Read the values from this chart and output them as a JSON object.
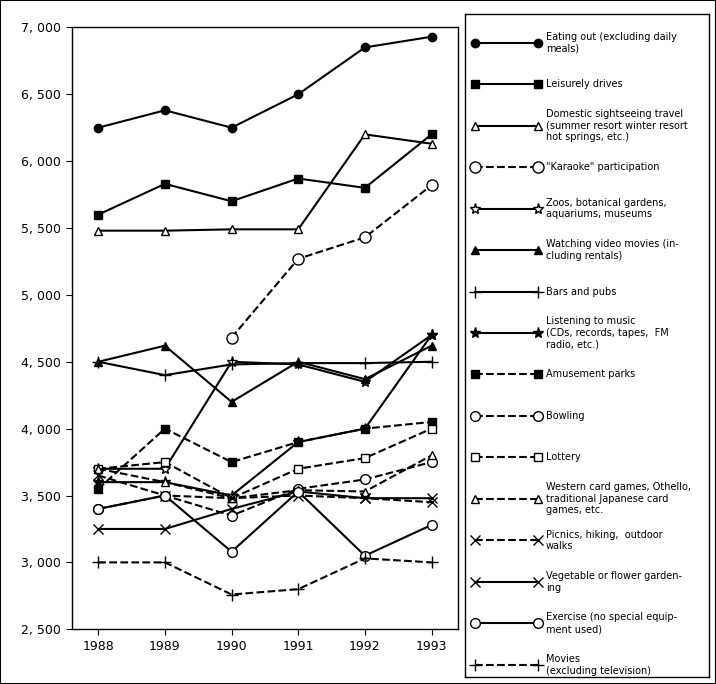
{
  "years": [
    1988,
    1989,
    1990,
    1991,
    1992,
    1993
  ],
  "series": [
    {
      "name": "Eating out (excluding daily\nmeals)",
      "values": [
        6250,
        6380,
        6250,
        6500,
        6850,
        6930
      ],
      "linestyle": "solid",
      "marker": "o",
      "markersize": 6,
      "markerfacecolor": "black",
      "linewidth": 1.5
    },
    {
      "name": "Leisurely drives",
      "values": [
        5600,
        5830,
        5700,
        5870,
        5800,
        6200
      ],
      "linestyle": "solid",
      "marker": "s",
      "markersize": 6,
      "markerfacecolor": "black",
      "linewidth": 1.5
    },
    {
      "name": "Domestic sightseeing travel\n(summer resort winter resort\nhot springs, etc.)",
      "values": [
        5480,
        5480,
        5490,
        5490,
        6200,
        6130
      ],
      "linestyle": "solid",
      "marker": "^",
      "markersize": 6,
      "markerfacecolor": "white",
      "linewidth": 1.5
    },
    {
      "name": "\"Karaoke\" participation",
      "values": [
        null,
        null,
        4680,
        5270,
        5430,
        5820
      ],
      "linestyle": "dashed",
      "marker": "o",
      "markersize": 8,
      "markerfacecolor": "white",
      "linewidth": 1.5
    },
    {
      "name": "Zoos, botanical gardens,\naquariums, museums",
      "values": [
        3700,
        3700,
        4500,
        4480,
        4350,
        4700
      ],
      "linestyle": "solid",
      "marker": "*",
      "markersize": 8,
      "markerfacecolor": "white",
      "linewidth": 1.5
    },
    {
      "name": "Watching video movies (in-\ncluding rentals)",
      "values": [
        4500,
        4620,
        4200,
        4500,
        4370,
        4620
      ],
      "linestyle": "solid",
      "marker": "^",
      "markersize": 6,
      "markerfacecolor": "black",
      "linewidth": 1.5
    },
    {
      "name": "Bars and pubs",
      "values": [
        4500,
        4400,
        4480,
        4490,
        4490,
        4500
      ],
      "linestyle": "solid",
      "marker": "+",
      "markersize": 8,
      "markerfacecolor": "black",
      "linewidth": 1.5
    },
    {
      "name": "Listening to music\n(CDs, records, tapes,  FM\nradio, etc.)",
      "values": [
        3600,
        3600,
        3500,
        3900,
        4000,
        4700
      ],
      "linestyle": "solid",
      "marker": "*",
      "markersize": 8,
      "markerfacecolor": "black",
      "linewidth": 1.5
    },
    {
      "name": "Amusement parks",
      "values": [
        3550,
        4000,
        3750,
        3900,
        4000,
        4050
      ],
      "linestyle": "dashed",
      "marker": "s",
      "markersize": 6,
      "markerfacecolor": "black",
      "linewidth": 1.5
    },
    {
      "name": "Bowling",
      "values": [
        3400,
        3500,
        3350,
        3550,
        3620,
        3750
      ],
      "linestyle": "dashed",
      "marker": "o",
      "markersize": 7,
      "markerfacecolor": "white",
      "linewidth": 1.5
    },
    {
      "name": "Lottery",
      "values": [
        3700,
        3750,
        3480,
        3700,
        3780,
        4000
      ],
      "linestyle": "dashed",
      "marker": "s",
      "markersize": 6,
      "markerfacecolor": "white",
      "linewidth": 1.5
    },
    {
      "name": "Western card games, Othello,\ntraditional Japanese card\ngames, etc.",
      "values": [
        3700,
        3600,
        3480,
        3540,
        3530,
        3800
      ],
      "linestyle": "dashed",
      "marker": "^",
      "markersize": 6,
      "markerfacecolor": "white",
      "linewidth": 1.5
    },
    {
      "name": "Picnics, hiking,  outdoor\nwalks",
      "values": [
        3650,
        3500,
        3480,
        3500,
        3480,
        3450
      ],
      "linestyle": "dashed",
      "marker": "x",
      "markersize": 7,
      "markerfacecolor": "black",
      "linewidth": 1.5
    },
    {
      "name": "Vegetable or flower garden-\ning",
      "values": [
        3250,
        3250,
        3400,
        3530,
        3480,
        3480
      ],
      "linestyle": "solid",
      "marker": "x",
      "markersize": 7,
      "markerfacecolor": "black",
      "linewidth": 1.5
    },
    {
      "name": "Exercise (no special equip-\nment used)",
      "values": [
        3400,
        3500,
        3080,
        3530,
        3050,
        3280
      ],
      "linestyle": "solid",
      "marker": "o",
      "markersize": 7,
      "markerfacecolor": "white",
      "linewidth": 1.5
    },
    {
      "name": "Movies\n(excluding television)",
      "values": [
        3000,
        3000,
        2760,
        2800,
        3030,
        3000
      ],
      "linestyle": "dashed",
      "marker": "+",
      "markersize": 8,
      "markerfacecolor": "black",
      "linewidth": 1.5
    }
  ],
  "ylim": [
    2500,
    7000
  ],
  "yticks": [
    2500,
    3000,
    3500,
    4000,
    4500,
    5000,
    5500,
    6000,
    6500,
    7000
  ],
  "background_color": "white"
}
